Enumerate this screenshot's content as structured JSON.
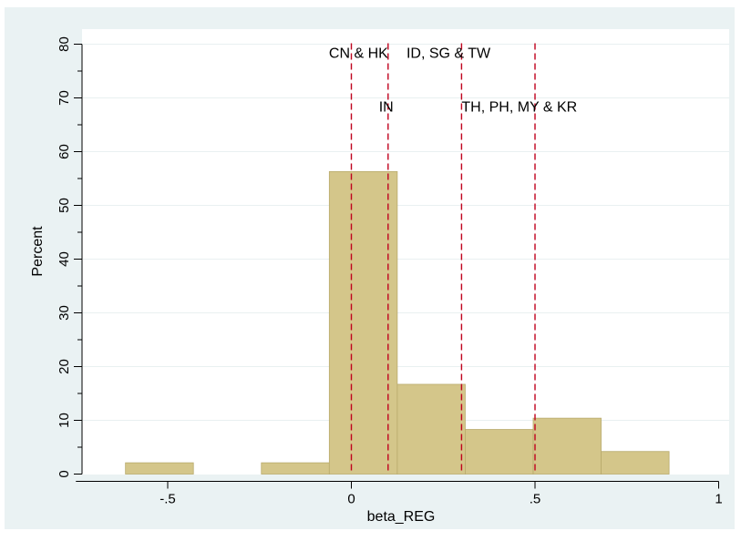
{
  "chart_data": {
    "type": "bar",
    "subtype": "histogram",
    "xlabel": "beta_REG",
    "ylabel": "Percent",
    "xlim": [
      -0.75,
      1.0
    ],
    "ylim": [
      0,
      80
    ],
    "x_ticks": [
      -0.5,
      0,
      0.5,
      1
    ],
    "x_tick_labels": [
      "-.5",
      "0",
      ".5",
      "1"
    ],
    "y_ticks": [
      0,
      10,
      20,
      30,
      40,
      50,
      60,
      70,
      80
    ],
    "y_tick_labels": [
      "0",
      "10",
      "20",
      "30",
      "40",
      "50",
      "60",
      "70",
      "80"
    ],
    "y_minor_step": 5,
    "grid": true,
    "bars": [
      {
        "x0": -0.615,
        "x1": -0.43,
        "value": 2.1
      },
      {
        "x0": -0.43,
        "x1": -0.245,
        "value": 0
      },
      {
        "x0": -0.245,
        "x1": -0.06,
        "value": 2.1
      },
      {
        "x0": -0.06,
        "x1": 0.125,
        "value": 56.3
      },
      {
        "x0": 0.125,
        "x1": 0.31,
        "value": 16.7
      },
      {
        "x0": 0.31,
        "x1": 0.495,
        "value": 8.3
      },
      {
        "x0": 0.495,
        "x1": 0.68,
        "value": 10.4
      },
      {
        "x0": 0.68,
        "x1": 0.865,
        "value": 4.2
      }
    ],
    "reference_lines": [
      {
        "x": 0.0,
        "color": "#c0001d",
        "style": "dashed"
      },
      {
        "x": 0.1,
        "color": "#c0001d",
        "style": "dashed"
      },
      {
        "x": 0.3,
        "color": "#c0001d",
        "style": "dashed"
      },
      {
        "x": 0.5,
        "color": "#c0001d",
        "style": "dashed"
      }
    ],
    "annotations": [
      {
        "text": "CN & HK",
        "x": 0.1,
        "y": 78.5,
        "anchor": "end"
      },
      {
        "text": "ID, SG & TW",
        "x": 0.15,
        "y": 78.5,
        "anchor": "start"
      },
      {
        "text": "IN",
        "x": 0.075,
        "y": 68.5,
        "anchor": "start"
      },
      {
        "text": "TH, PH, MY & KR",
        "x": 0.3,
        "y": 68.5,
        "anchor": "start"
      }
    ],
    "colors": {
      "bar_fill": "#d4c68a",
      "bar_edge": "#b8aa6c",
      "reference_line": "#c0001d",
      "background": "#eaf2f3",
      "plot_background": "#ffffff"
    }
  }
}
